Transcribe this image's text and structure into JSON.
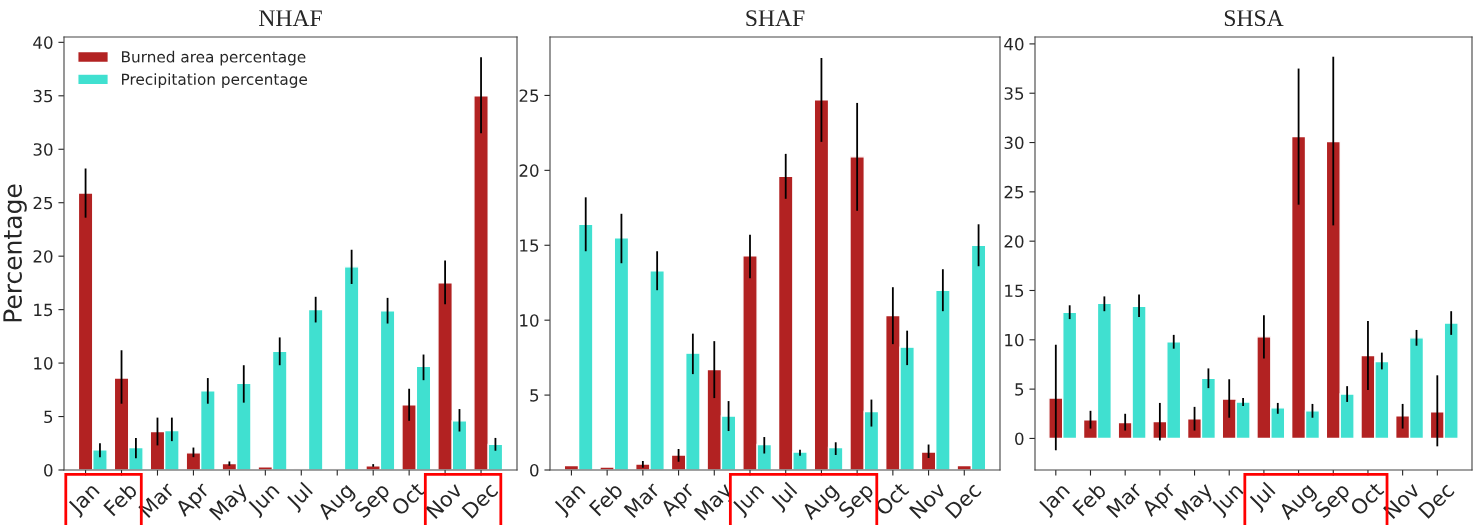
{
  "chart_data": [
    {
      "type": "bar",
      "title": "NHAF",
      "ylabel": "Percentage",
      "categories": [
        "Jan",
        "Feb",
        "Mar",
        "Apr",
        "May",
        "Jun",
        "Jul",
        "Aug",
        "Sep",
        "Oct",
        "Nov",
        "Dec"
      ],
      "ylim": [
        0,
        40.5
      ],
      "yticks": [
        0,
        5,
        10,
        15,
        20,
        25,
        30,
        35,
        40
      ],
      "legend": "top left",
      "series": [
        {
          "name": "Burned area percentage",
          "color": "#b22222",
          "values": [
            25.9,
            8.6,
            3.6,
            1.6,
            0.6,
            0.3,
            0.1,
            0.1,
            0.4,
            6.1,
            17.5,
            35.0
          ],
          "errors": [
            [
              23.6,
              28.2
            ],
            [
              6.2,
              11.2
            ],
            [
              2.3,
              4.9
            ],
            [
              1.2,
              2.1
            ],
            [
              0.4,
              0.8
            ],
            null,
            null,
            null,
            [
              0.3,
              0.55
            ],
            [
              4.6,
              7.6
            ],
            [
              15.5,
              19.6
            ],
            [
              31.5,
              38.6
            ]
          ]
        },
        {
          "name": "Precipitation percentage",
          "color": "#40e0d0",
          "values": [
            1.9,
            2.1,
            3.7,
            7.4,
            8.1,
            11.1,
            15.0,
            19.0,
            14.9,
            9.7,
            4.6,
            2.4
          ],
          "errors": [
            [
              1.2,
              2.5
            ],
            [
              1.1,
              3.0
            ],
            [
              2.7,
              4.9
            ],
            [
              6.2,
              8.6
            ],
            [
              6.3,
              9.8
            ],
            [
              9.8,
              12.4
            ],
            [
              13.8,
              16.2
            ],
            [
              17.4,
              20.6
            ],
            [
              13.7,
              16.1
            ],
            [
              8.4,
              10.8
            ],
            [
              3.6,
              5.7
            ],
            [
              1.8,
              3.0
            ]
          ]
        }
      ]
    },
    {
      "type": "bar",
      "title": "SHAF",
      "categories": [
        "Jan",
        "Feb",
        "Mar",
        "Apr",
        "May",
        "Jun",
        "Jul",
        "Aug",
        "Sep",
        "Oct",
        "Nov",
        "Dec"
      ],
      "ylim": [
        0,
        28.9
      ],
      "yticks": [
        0,
        5,
        10,
        15,
        20,
        25
      ],
      "series": [
        {
          "color": "#b22222",
          "values": [
            0.3,
            0.2,
            0.4,
            1.0,
            6.7,
            14.3,
            19.6,
            24.7,
            20.9,
            10.3,
            1.2,
            0.3
          ],
          "errors": [
            null,
            null,
            [
              0.15,
              0.6
            ],
            [
              0.55,
              1.4
            ],
            [
              4.8,
              8.6
            ],
            [
              12.8,
              15.7
            ],
            [
              18.1,
              21.1
            ],
            [
              21.9,
              27.5
            ],
            [
              17.3,
              24.5
            ],
            [
              8.4,
              12.2
            ],
            [
              0.8,
              1.7
            ],
            null
          ]
        },
        {
          "color": "#40e0d0",
          "values": [
            16.4,
            15.5,
            13.3,
            7.8,
            3.6,
            1.7,
            1.2,
            1.5,
            3.9,
            8.2,
            12.0,
            15.0
          ],
          "errors": [
            [
              14.6,
              18.2
            ],
            [
              13.8,
              17.1
            ],
            [
              12.0,
              14.6
            ],
            [
              6.4,
              9.1
            ],
            [
              2.6,
              4.6
            ],
            [
              1.1,
              2.2
            ],
            [
              0.95,
              1.35
            ],
            [
              1.0,
              1.85
            ],
            [
              2.9,
              4.7
            ],
            [
              7.0,
              9.3
            ],
            [
              10.6,
              13.4
            ],
            [
              13.6,
              16.4
            ]
          ]
        }
      ]
    },
    {
      "type": "bar",
      "title": "SHSA",
      "categories": [
        "Jan",
        "Feb",
        "Mar",
        "Apr",
        "May",
        "Jun",
        "Jul",
        "Aug",
        "Sep",
        "Oct",
        "Nov",
        "Dec"
      ],
      "ylim": [
        -3.2,
        40.7
      ],
      "yticks": [
        0,
        5,
        10,
        15,
        20,
        25,
        30,
        35,
        40
      ],
      "series": [
        {
          "color": "#b22222",
          "values": [
            4.1,
            1.9,
            1.6,
            1.7,
            2.0,
            4.0,
            10.3,
            30.6,
            30.1,
            8.4,
            2.3,
            2.7
          ],
          "errors": [
            [
              -1.2,
              9.5
            ],
            [
              1.0,
              2.8
            ],
            [
              0.8,
              2.5
            ],
            [
              -0.2,
              3.6
            ],
            [
              0.8,
              3.2
            ],
            [
              2.1,
              6.0
            ],
            [
              8.1,
              12.5
            ],
            [
              23.7,
              37.5
            ],
            [
              21.6,
              38.7
            ],
            [
              4.9,
              11.9
            ],
            [
              1.0,
              3.5
            ],
            [
              -0.8,
              6.4
            ]
          ]
        },
        {
          "color": "#40e0d0",
          "values": [
            12.8,
            13.7,
            13.4,
            9.8,
            6.1,
            3.7,
            3.1,
            2.8,
            4.5,
            7.8,
            10.2,
            11.7
          ],
          "errors": [
            [
              12.1,
              13.5
            ],
            [
              12.9,
              14.4
            ],
            [
              12.3,
              14.6
            ],
            [
              9.1,
              10.5
            ],
            [
              5.1,
              7.1
            ],
            [
              3.3,
              4.1
            ],
            [
              2.5,
              3.6
            ],
            [
              2.1,
              3.5
            ],
            [
              3.7,
              5.3
            ],
            [
              7.0,
              8.7
            ],
            [
              9.4,
              11.0
            ],
            [
              10.5,
              12.9
            ]
          ]
        }
      ]
    }
  ]
}
